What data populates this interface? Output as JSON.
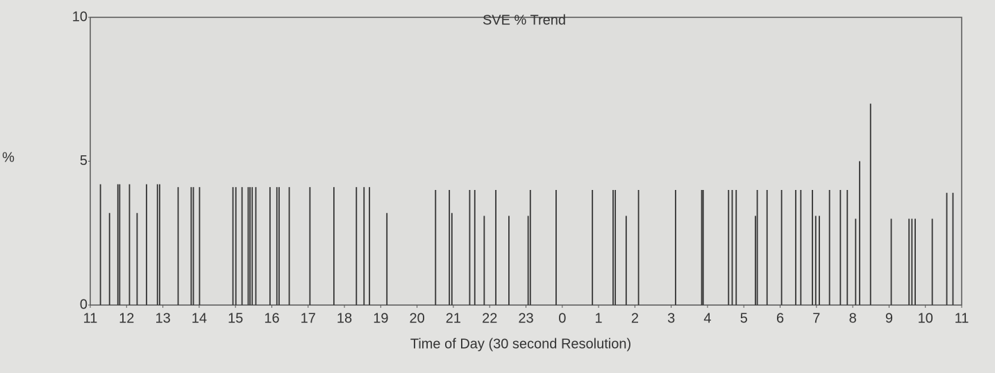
{
  "chart_data": {
    "type": "stem",
    "title": "SVE % Trend",
    "x_label": "Time of Day (30 second Resolution)",
    "y_label": "%",
    "color": "#333333",
    "grid": false,
    "xlim": [
      0,
      24
    ],
    "xticks": [
      {
        "value": 0,
        "label": "11"
      },
      {
        "value": 1,
        "label": "12"
      },
      {
        "value": 2,
        "label": "13"
      },
      {
        "value": 3,
        "label": "14"
      },
      {
        "value": 4,
        "label": "15"
      },
      {
        "value": 5,
        "label": "16"
      },
      {
        "value": 6,
        "label": "17"
      },
      {
        "value": 7,
        "label": "18"
      },
      {
        "value": 8,
        "label": "19"
      },
      {
        "value": 9,
        "label": "20"
      },
      {
        "value": 10,
        "label": "21"
      },
      {
        "value": 11,
        "label": "22"
      },
      {
        "value": 12,
        "label": "23"
      },
      {
        "value": 13,
        "label": "0"
      },
      {
        "value": 14,
        "label": "1"
      },
      {
        "value": 15,
        "label": "2"
      },
      {
        "value": 16,
        "label": "3"
      },
      {
        "value": 17,
        "label": "4"
      },
      {
        "value": 18,
        "label": "5"
      },
      {
        "value": 19,
        "label": "6"
      },
      {
        "value": 20,
        "label": "7"
      },
      {
        "value": 21,
        "label": "8"
      },
      {
        "value": 22,
        "label": "9"
      },
      {
        "value": 23,
        "label": "10"
      },
      {
        "value": 24,
        "label": "11"
      }
    ],
    "ylim": [
      0,
      10
    ],
    "yticks": [
      0,
      5,
      10
    ],
    "x": [
      0.28,
      0.53,
      0.76,
      0.81,
      1.08,
      1.29,
      1.55,
      1.85,
      1.91,
      2.42,
      2.78,
      2.84,
      3.01,
      3.93,
      4.01,
      4.18,
      4.35,
      4.4,
      4.46,
      4.56,
      4.95,
      5.14,
      5.2,
      5.48,
      6.05,
      6.71,
      7.33,
      7.54,
      7.69,
      8.17,
      9.51,
      9.89,
      9.96,
      10.45,
      10.59,
      10.85,
      11.17,
      11.53,
      12.06,
      12.12,
      12.83,
      13.83,
      14.4,
      14.46,
      14.76,
      15.1,
      16.12,
      16.84,
      16.88,
      17.58,
      17.68,
      17.79,
      18.32,
      18.37,
      18.64,
      19.04,
      19.43,
      19.57,
      19.89,
      19.98,
      20.08,
      20.36,
      20.66,
      20.85,
      21.08,
      21.19,
      21.49,
      22.06,
      22.55,
      22.63,
      22.72,
      23.19,
      23.59,
      23.76
    ],
    "values": [
      4.2,
      3.2,
      4.2,
      4.2,
      4.2,
      3.2,
      4.2,
      4.2,
      4.2,
      4.1,
      4.1,
      4.1,
      4.1,
      4.1,
      4.1,
      4.1,
      4.1,
      4.1,
      4.1,
      4.1,
      4.1,
      4.1,
      4.1,
      4.1,
      4.1,
      4.1,
      4.1,
      4.1,
      4.1,
      3.2,
      4.0,
      4.0,
      3.2,
      4.0,
      4.0,
      3.1,
      4.0,
      3.1,
      3.1,
      4.0,
      4.0,
      4.0,
      4.0,
      4.0,
      3.1,
      4.0,
      4.0,
      4.0,
      4.0,
      4.0,
      4.0,
      4.0,
      3.1,
      4.0,
      4.0,
      4.0,
      4.0,
      4.0,
      4.0,
      3.1,
      3.1,
      4.0,
      4.0,
      4.0,
      3.0,
      5.0,
      7.0,
      3.0,
      3.0,
      3.0,
      3.0,
      3.0,
      3.9,
      3.9
    ]
  }
}
